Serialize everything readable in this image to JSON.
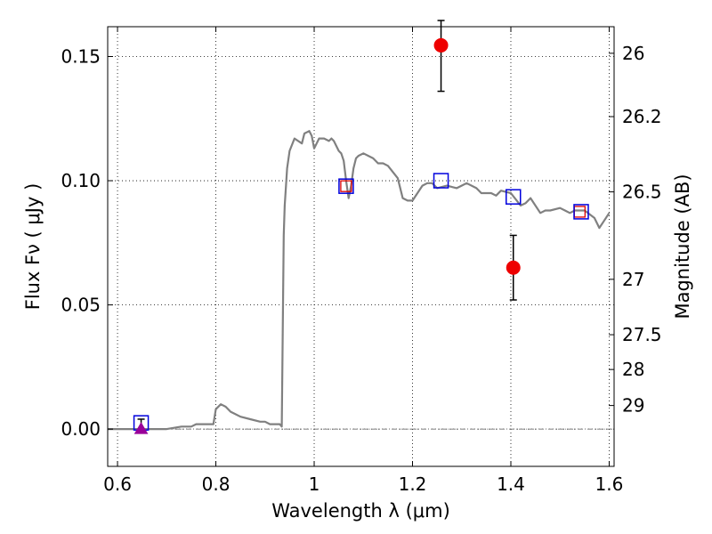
{
  "chart_data": {
    "type": "scatter",
    "xlabel": "Wavelength  λ (μm)",
    "ylabel": "Flux  Fν  ( μJy )",
    "y2label": "Magnitude (AB)",
    "xlim": [
      0.58,
      1.61
    ],
    "ylim": [
      -0.015,
      0.162
    ],
    "grid": true,
    "x_ticks": [
      {
        "value": 0.6,
        "label": "0.6"
      },
      {
        "value": 0.8,
        "label": "0.8"
      },
      {
        "value": 1.0,
        "label": "1"
      },
      {
        "value": 1.2,
        "label": "1.2"
      },
      {
        "value": 1.4,
        "label": "1.4"
      },
      {
        "value": 1.6,
        "label": "1.6"
      }
    ],
    "y_ticks": [
      {
        "value": 0.0,
        "label": "0.00"
      },
      {
        "value": 0.05,
        "label": "0.05"
      },
      {
        "value": 0.1,
        "label": "0.10"
      },
      {
        "value": 0.15,
        "label": "0.15"
      }
    ],
    "magnitude_ticks": [
      {
        "flux": 0.1513,
        "label": "26"
      },
      {
        "flux": 0.1258,
        "label": "26.2"
      },
      {
        "flux": 0.0955,
        "label": "26.5"
      },
      {
        "flux": 0.0603,
        "label": "27"
      },
      {
        "flux": 0.038,
        "label": "27.5"
      },
      {
        "flux": 0.024,
        "label": "28"
      },
      {
        "flux": 0.0095,
        "label": "29"
      }
    ],
    "model_spectrum": {
      "color": "#808080",
      "x": [
        0.58,
        0.7,
        0.73,
        0.74,
        0.75,
        0.76,
        0.77,
        0.79,
        0.795,
        0.8,
        0.81,
        0.82,
        0.83,
        0.84,
        0.85,
        0.87,
        0.89,
        0.9,
        0.91,
        0.92,
        0.93,
        0.934,
        0.936,
        0.938,
        0.94,
        0.945,
        0.95,
        0.96,
        0.975,
        0.98,
        0.99,
        0.995,
        1.0,
        1.01,
        1.02,
        1.03,
        1.035,
        1.04,
        1.05,
        1.055,
        1.06,
        1.065,
        1.07,
        1.075,
        1.08,
        1.085,
        1.09,
        1.1,
        1.12,
        1.13,
        1.14,
        1.15,
        1.17,
        1.18,
        1.19,
        1.2,
        1.22,
        1.23,
        1.24,
        1.25,
        1.27,
        1.29,
        1.3,
        1.31,
        1.33,
        1.34,
        1.36,
        1.37,
        1.38,
        1.4,
        1.42,
        1.43,
        1.44,
        1.46,
        1.47,
        1.48,
        1.5,
        1.51,
        1.52,
        1.53,
        1.55,
        1.57,
        1.58,
        1.59,
        1.6
      ],
      "y": [
        0.0,
        0.0,
        0.001,
        0.001,
        0.001,
        0.002,
        0.002,
        0.002,
        0.002,
        0.008,
        0.01,
        0.009,
        0.007,
        0.006,
        0.005,
        0.004,
        0.003,
        0.003,
        0.002,
        0.002,
        0.002,
        0.001,
        0.04,
        0.078,
        0.09,
        0.105,
        0.112,
        0.117,
        0.115,
        0.119,
        0.12,
        0.118,
        0.113,
        0.117,
        0.117,
        0.116,
        0.117,
        0.116,
        0.112,
        0.111,
        0.108,
        0.1,
        0.093,
        0.098,
        0.105,
        0.109,
        0.11,
        0.111,
        0.109,
        0.107,
        0.107,
        0.106,
        0.101,
        0.093,
        0.092,
        0.092,
        0.098,
        0.099,
        0.099,
        0.097,
        0.098,
        0.097,
        0.098,
        0.099,
        0.097,
        0.095,
        0.095,
        0.094,
        0.096,
        0.095,
        0.09,
        0.091,
        0.093,
        0.087,
        0.088,
        0.088,
        0.089,
        0.088,
        0.087,
        0.088,
        0.088,
        0.085,
        0.081,
        0.084,
        0.087
      ]
    },
    "model_photometry": [
      {
        "x": 0.648,
        "y": 0.0025
      },
      {
        "x": 1.065,
        "y": 0.0978
      },
      {
        "x": 1.258,
        "y": 0.1
      },
      {
        "x": 1.405,
        "y": 0.0935
      },
      {
        "x": 1.543,
        "y": 0.0875
      }
    ],
    "model_photometry_color": "#0000dd",
    "observed_photometry": [
      {
        "x": 1.065,
        "y": 0.0978
      },
      {
        "x": 1.54,
        "y": 0.0875
      }
    ],
    "observed_photometry_color": "#dd0000",
    "detections": [
      {
        "x": 1.258,
        "y": 0.1545,
        "err_low": 0.0185,
        "err_high": 0.01
      },
      {
        "x": 1.405,
        "y": 0.065,
        "err_low": 0.013,
        "err_high": 0.013
      }
    ],
    "detections_color": "#ee0000",
    "upper_limit": {
      "x": 0.648,
      "y": 0.0,
      "err_high": 0.004,
      "color": "#990099"
    }
  }
}
